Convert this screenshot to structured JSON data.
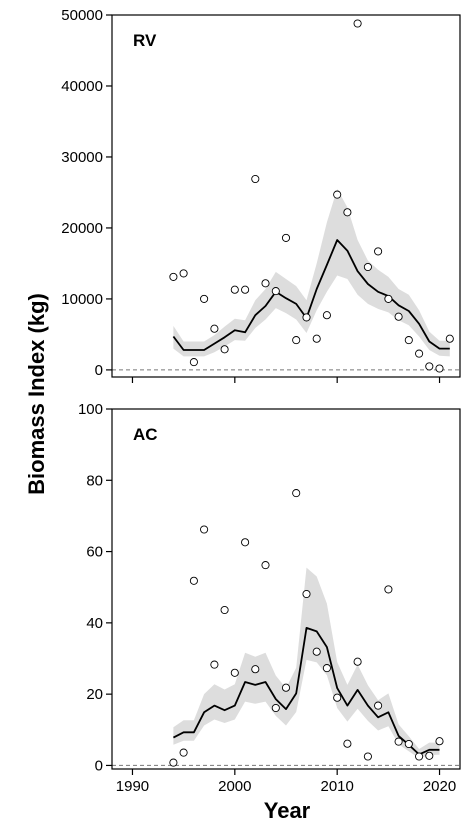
{
  "figure": {
    "ylabel": "Biomass Index (kg)",
    "xlabel": "Year"
  },
  "chart_data": [
    {
      "type": "scatter",
      "panel_label": "RV",
      "xlabel": "Year",
      "ylabel": "Biomass Index (kg)",
      "xlim": [
        1988,
        2022
      ],
      "ylim": [
        -1000,
        50000
      ],
      "x_ticks": [
        1990,
        2000,
        2010,
        2020
      ],
      "y_ticks": [
        0,
        10000,
        20000,
        30000,
        40000,
        50000
      ],
      "grid": false,
      "reference_line": {
        "y": 0,
        "style": "dashed"
      },
      "series": [
        {
          "kind": "points",
          "marker": "open-circle",
          "x": [
            1994,
            1995,
            1996,
            1997,
            1998,
            1999,
            2000,
            2001,
            2002,
            2003,
            2004,
            2005,
            2006,
            2007,
            2008,
            2009,
            2010,
            2011,
            2012,
            2013,
            2014,
            2015,
            2016,
            2017,
            2018,
            2019,
            2020,
            2021
          ],
          "y": [
            13100,
            13600,
            1100,
            10000,
            5800,
            2900,
            11300,
            11300,
            26900,
            12200,
            11100,
            18600,
            4200,
            7400,
            4400,
            7700,
            24700,
            22200,
            48800,
            14500,
            16700,
            10000,
            7500,
            4200,
            2300,
            500,
            200,
            4400
          ]
        },
        {
          "kind": "line",
          "x": [
            1994,
            1995,
            1996,
            1997,
            1998,
            1999,
            2000,
            2001,
            2002,
            2003,
            2004,
            2005,
            2006,
            2007,
            2008,
            2009,
            2010,
            2011,
            2012,
            2013,
            2014,
            2015,
            2016,
            2017,
            2018,
            2019,
            2020,
            2021
          ],
          "y": [
            4700,
            2800,
            2800,
            2800,
            3700,
            4600,
            5600,
            5300,
            7700,
            9000,
            11000,
            10100,
            9300,
            7300,
            11400,
            14800,
            18300,
            16800,
            13900,
            12100,
            11000,
            10400,
            9100,
            8300,
            6500,
            4000,
            3000,
            3000
          ]
        },
        {
          "kind": "band",
          "x": [
            1994,
            1995,
            1996,
            1997,
            1998,
            1999,
            2000,
            2001,
            2002,
            2003,
            2004,
            2005,
            2006,
            2007,
            2008,
            2009,
            2010,
            2011,
            2012,
            2013,
            2014,
            2015,
            2016,
            2017,
            2018,
            2019,
            2020,
            2021
          ],
          "lower": [
            3000,
            1900,
            1900,
            1900,
            2500,
            3300,
            4200,
            4100,
            5900,
            7100,
            8700,
            8000,
            7100,
            5200,
            8400,
            11000,
            13300,
            12800,
            10600,
            9300,
            8600,
            8100,
            7000,
            6300,
            4700,
            2800,
            2000,
            1900
          ],
          "upper": [
            6200,
            4000,
            4000,
            4000,
            4900,
            6100,
            7200,
            7000,
            9800,
            11400,
            13800,
            12800,
            11800,
            9800,
            15000,
            20800,
            25500,
            22900,
            18300,
            15400,
            14100,
            13100,
            11400,
            10600,
            8400,
            5400,
            4100,
            4100
          ]
        }
      ]
    },
    {
      "type": "scatter",
      "panel_label": "AC",
      "xlabel": "Year",
      "ylabel": "Biomass Index (kg)",
      "xlim": [
        1988,
        2022
      ],
      "ylim": [
        -1,
        100
      ],
      "x_ticks": [
        1990,
        2000,
        2010,
        2020
      ],
      "x_tick_labels": [
        "1990",
        "2000",
        "2010",
        "2020"
      ],
      "y_ticks": [
        0,
        20,
        40,
        60,
        80,
        100
      ],
      "grid": false,
      "reference_line": {
        "y": 0,
        "style": "dashed"
      },
      "series": [
        {
          "kind": "points",
          "marker": "open-circle",
          "x": [
            1994,
            1995,
            1996,
            1997,
            1998,
            1999,
            2000,
            2001,
            2002,
            2003,
            2004,
            2005,
            2006,
            2007,
            2008,
            2009,
            2010,
            2011,
            2012,
            2013,
            2014,
            2015,
            2016,
            2017,
            2018,
            2019,
            2020
          ],
          "y": [
            0.8,
            3.6,
            51.8,
            66.2,
            28.3,
            43.6,
            26.0,
            62.6,
            27.0,
            56.2,
            16.1,
            21.8,
            76.4,
            48.1,
            31.9,
            27.3,
            19.0,
            6.1,
            29.1,
            2.5,
            16.8,
            49.4,
            6.7,
            6.0,
            2.5,
            2.7,
            6.8
          ]
        },
        {
          "kind": "line",
          "x": [
            1994,
            1995,
            1996,
            1997,
            1998,
            1999,
            2000,
            2001,
            2002,
            2003,
            2004,
            2005,
            2006,
            2007,
            2008,
            2009,
            2010,
            2011,
            2012,
            2013,
            2014,
            2015,
            2016,
            2017,
            2018,
            2019,
            2020
          ],
          "y": [
            7.8,
            9.3,
            9.3,
            14.9,
            16.8,
            15.5,
            16.8,
            23.4,
            22.6,
            23.4,
            18.6,
            15.8,
            20.2,
            38.6,
            37.6,
            33.2,
            21.7,
            16.8,
            21.2,
            16.8,
            13.5,
            14.9,
            8.3,
            5.8,
            3.1,
            4.4,
            4.4
          ]
        },
        {
          "kind": "band",
          "x": [
            1994,
            1995,
            1996,
            1997,
            1998,
            1999,
            2000,
            2001,
            2002,
            2003,
            2004,
            2005,
            2006,
            2007,
            2008,
            2009,
            2010,
            2011,
            2012,
            2013,
            2014,
            2015,
            2016,
            2017,
            2018,
            2019,
            2020
          ],
          "lower": [
            5.8,
            6.9,
            6.9,
            11.2,
            12.9,
            11.9,
            12.9,
            17.9,
            17.3,
            17.9,
            13.9,
            11.2,
            15.0,
            29.6,
            28.9,
            25.3,
            16.1,
            12.3,
            15.9,
            12.5,
            9.8,
            11.0,
            5.9,
            4.0,
            2.0,
            2.9,
            3.0
          ],
          "upper": [
            10.7,
            12.7,
            12.7,
            20.0,
            22.8,
            21.3,
            22.8,
            31.6,
            30.5,
            31.6,
            25.2,
            21.7,
            27.4,
            55.5,
            53.0,
            45.4,
            29.0,
            22.6,
            28.3,
            22.5,
            18.3,
            20.2,
            11.5,
            8.2,
            4.6,
            6.4,
            6.4
          ]
        }
      ]
    }
  ]
}
